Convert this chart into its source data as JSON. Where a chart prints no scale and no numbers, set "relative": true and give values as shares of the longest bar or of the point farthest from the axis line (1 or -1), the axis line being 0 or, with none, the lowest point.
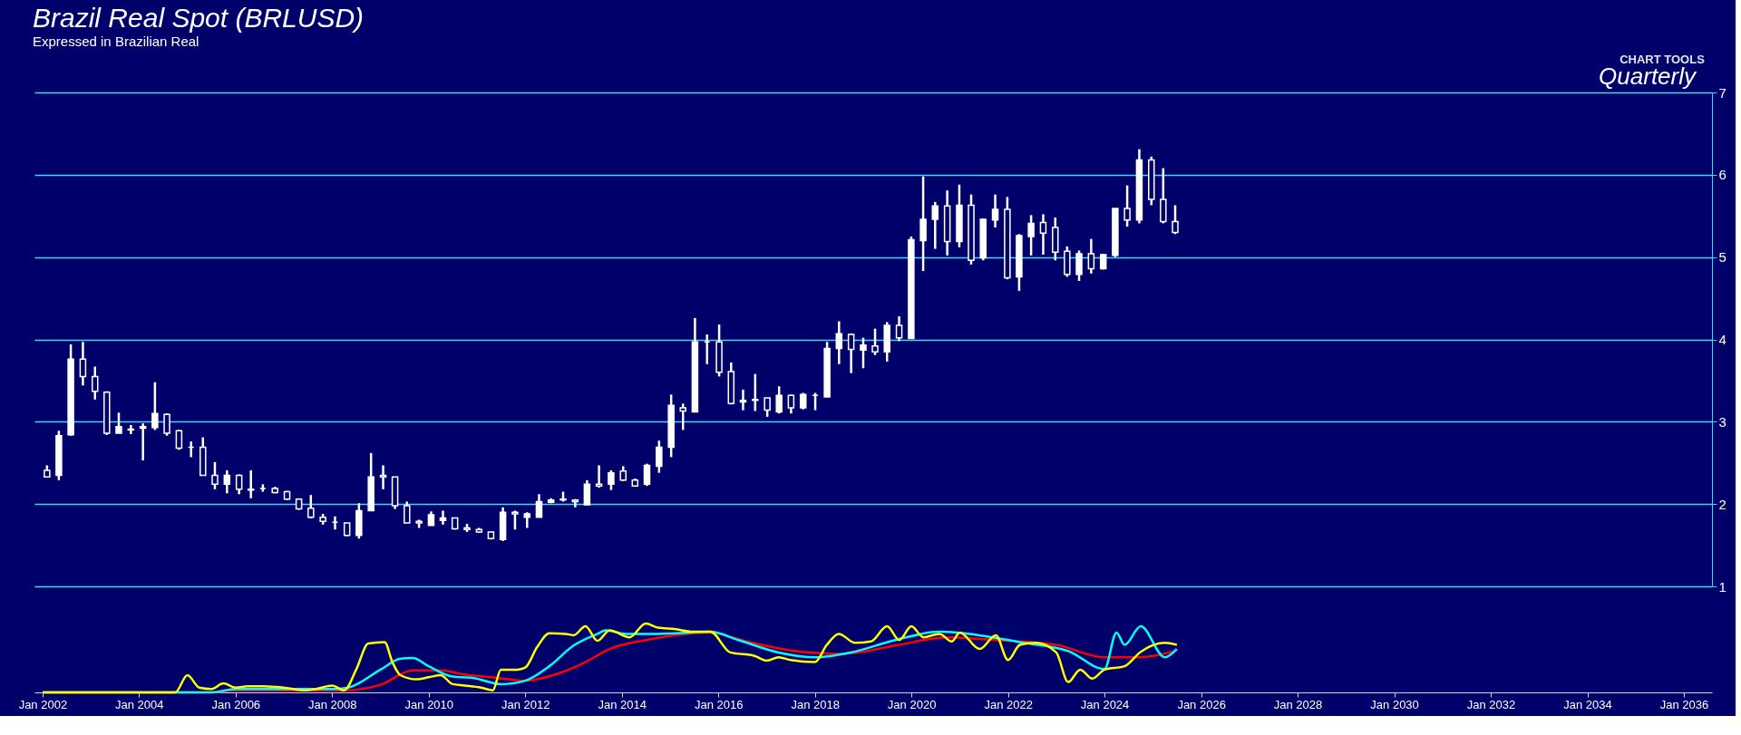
{
  "chart_data": [
    {
      "type": "candlestick",
      "title": "Brazil Real Spot (BRLUSD)",
      "subtitle": "Expressed in Brazilian Real",
      "annotations": [
        "Quarterly",
        "CHART TOOLS"
      ],
      "color": "#ffffff",
      "x": [
        "2002-01",
        "2002-04",
        "2002-07",
        "2002-10",
        "2003-01",
        "2003-04",
        "2003-07",
        "2003-10",
        "2004-01",
        "2004-04",
        "2004-07",
        "2004-10",
        "2005-01",
        "2005-04",
        "2005-07",
        "2005-10",
        "2006-01",
        "2006-04",
        "2006-07",
        "2006-10",
        "2007-01",
        "2007-04",
        "2007-07",
        "2007-10",
        "2008-01",
        "2008-04",
        "2008-07",
        "2008-10",
        "2009-01",
        "2009-04",
        "2009-07",
        "2009-10",
        "2010-01",
        "2010-04",
        "2010-07",
        "2010-10",
        "2011-01",
        "2011-04",
        "2011-07",
        "2011-10",
        "2012-01",
        "2012-04",
        "2012-07",
        "2012-10",
        "2013-01",
        "2013-04",
        "2013-07",
        "2013-10",
        "2014-01",
        "2014-04",
        "2014-07",
        "2014-10",
        "2015-01",
        "2015-04",
        "2015-07",
        "2015-10",
        "2016-01",
        "2016-04",
        "2016-07",
        "2016-10",
        "2017-01",
        "2017-04",
        "2017-07",
        "2017-10",
        "2018-01",
        "2018-04",
        "2018-07",
        "2018-10",
        "2019-01",
        "2019-04",
        "2019-07",
        "2019-10",
        "2020-01",
        "2020-04",
        "2020-07",
        "2020-10",
        "2021-01",
        "2021-04",
        "2021-07",
        "2021-10",
        "2022-01",
        "2022-04",
        "2022-07",
        "2022-10",
        "2023-01",
        "2023-04",
        "2023-07",
        "2023-10",
        "2024-01",
        "2024-04",
        "2024-07",
        "2024-10",
        "2025-01",
        "2025-04",
        "2025-07"
      ],
      "ohlc": [
        [
          2.41,
          2.47,
          2.33,
          2.33
        ],
        [
          2.35,
          2.89,
          2.29,
          2.83
        ],
        [
          2.84,
          3.94,
          2.83,
          3.76
        ],
        [
          3.76,
          3.97,
          3.44,
          3.55
        ],
        [
          3.55,
          3.67,
          3.27,
          3.37
        ],
        [
          3.36,
          3.37,
          2.84,
          2.86
        ],
        [
          2.86,
          3.11,
          2.86,
          2.94
        ],
        [
          2.91,
          2.96,
          2.85,
          2.9
        ],
        [
          2.92,
          2.98,
          2.53,
          2.94
        ],
        [
          2.93,
          3.48,
          2.9,
          3.1
        ],
        [
          3.09,
          3.1,
          2.83,
          2.86
        ],
        [
          2.89,
          2.9,
          2.66,
          2.68
        ],
        [
          2.69,
          2.76,
          2.57,
          2.69
        ],
        [
          2.69,
          2.81,
          2.35,
          2.35
        ],
        [
          2.35,
          2.51,
          2.18,
          2.24
        ],
        [
          2.24,
          2.41,
          2.13,
          2.35
        ],
        [
          2.35,
          2.36,
          2.12,
          2.18
        ],
        [
          2.18,
          2.41,
          2.07,
          2.17
        ],
        [
          2.19,
          2.24,
          2.15,
          2.19
        ],
        [
          2.19,
          2.21,
          2.13,
          2.14
        ],
        [
          2.15,
          2.16,
          2.05,
          2.06
        ],
        [
          2.06,
          2.07,
          1.93,
          1.94
        ],
        [
          1.95,
          2.11,
          1.83,
          1.84
        ],
        [
          1.84,
          1.88,
          1.75,
          1.79
        ],
        [
          1.78,
          1.85,
          1.69,
          1.78
        ],
        [
          1.77,
          1.77,
          1.61,
          1.62
        ],
        [
          1.62,
          2.01,
          1.58,
          1.92
        ],
        [
          1.92,
          2.62,
          1.92,
          2.33
        ],
        [
          2.35,
          2.47,
          2.18,
          2.33
        ],
        [
          2.33,
          2.33,
          1.94,
          1.98
        ],
        [
          1.98,
          2.03,
          1.77,
          1.77
        ],
        [
          1.79,
          1.81,
          1.71,
          1.77
        ],
        [
          1.74,
          1.91,
          1.74,
          1.87
        ],
        [
          1.8,
          1.92,
          1.75,
          1.83
        ],
        [
          1.83,
          1.83,
          1.69,
          1.7
        ],
        [
          1.71,
          1.76,
          1.66,
          1.69
        ],
        [
          1.69,
          1.71,
          1.65,
          1.66
        ],
        [
          1.66,
          1.66,
          1.57,
          1.58
        ],
        [
          1.57,
          1.96,
          1.55,
          1.9
        ],
        [
          1.9,
          1.92,
          1.69,
          1.88
        ],
        [
          1.84,
          1.9,
          1.71,
          1.88
        ],
        [
          1.84,
          2.12,
          1.84,
          2.03
        ],
        [
          2.02,
          2.07,
          2.01,
          2.05
        ],
        [
          2.05,
          2.15,
          2.03,
          2.06
        ],
        [
          2.05,
          2.06,
          1.96,
          2.03
        ],
        [
          1.99,
          2.29,
          1.99,
          2.24
        ],
        [
          2.24,
          2.47,
          2.2,
          2.22
        ],
        [
          2.24,
          2.41,
          2.17,
          2.38
        ],
        [
          2.4,
          2.46,
          2.28,
          2.29
        ],
        [
          2.29,
          2.31,
          2.21,
          2.22
        ],
        [
          2.24,
          2.49,
          2.22,
          2.47
        ],
        [
          2.46,
          2.77,
          2.38,
          2.69
        ],
        [
          2.69,
          3.33,
          2.57,
          3.2
        ],
        [
          3.17,
          3.22,
          2.9,
          3.13
        ],
        [
          3.12,
          4.26,
          3.12,
          3.97
        ],
        [
          3.97,
          4.06,
          3.7,
          3.97
        ],
        [
          3.97,
          4.18,
          3.55,
          3.6
        ],
        [
          3.61,
          3.72,
          3.21,
          3.22
        ],
        [
          3.24,
          3.39,
          3.14,
          3.26
        ],
        [
          3.27,
          3.58,
          3.13,
          3.26
        ],
        [
          3.29,
          3.29,
          3.06,
          3.14
        ],
        [
          3.12,
          3.43,
          3.1,
          3.32
        ],
        [
          3.32,
          3.33,
          3.1,
          3.17
        ],
        [
          3.17,
          3.35,
          3.15,
          3.33
        ],
        [
          3.32,
          3.35,
          3.14,
          3.32
        ],
        [
          3.3,
          3.97,
          3.3,
          3.89
        ],
        [
          3.89,
          4.22,
          3.7,
          4.07
        ],
        [
          4.06,
          4.07,
          3.59,
          3.88
        ],
        [
          3.87,
          4.02,
          3.65,
          3.93
        ],
        [
          3.92,
          4.13,
          3.81,
          3.85
        ],
        [
          3.85,
          4.21,
          3.73,
          4.17
        ],
        [
          4.17,
          4.28,
          3.98,
          4.02
        ],
        [
          4.01,
          5.25,
          4.01,
          5.21
        ],
        [
          5.2,
          5.98,
          4.83,
          5.46
        ],
        [
          5.46,
          5.67,
          5.1,
          5.62
        ],
        [
          5.62,
          5.81,
          5.02,
          5.19
        ],
        [
          5.19,
          5.88,
          5.12,
          5.63
        ],
        [
          5.63,
          5.76,
          4.91,
          4.96
        ],
        [
          4.99,
          5.47,
          4.96,
          5.46
        ],
        [
          5.45,
          5.76,
          5.36,
          5.58
        ],
        [
          5.58,
          5.73,
          4.73,
          4.75
        ],
        [
          4.76,
          5.28,
          4.59,
          5.26
        ],
        [
          5.25,
          5.51,
          5.02,
          5.41
        ],
        [
          5.42,
          5.52,
          5.03,
          5.29
        ],
        [
          5.36,
          5.48,
          4.96,
          5.06
        ],
        [
          5.07,
          5.13,
          4.76,
          4.79
        ],
        [
          4.79,
          5.08,
          4.71,
          5.04
        ],
        [
          5.04,
          5.22,
          4.8,
          4.86
        ],
        [
          4.86,
          5.04,
          4.85,
          5.03
        ],
        [
          5.02,
          5.59,
          5.0,
          5.59
        ],
        [
          5.59,
          5.87,
          5.37,
          5.45
        ],
        [
          5.45,
          6.31,
          5.41,
          6.18
        ],
        [
          6.18,
          6.22,
          5.63,
          5.7
        ],
        [
          5.7,
          6.08,
          5.41,
          5.43
        ],
        [
          5.43,
          5.63,
          5.28,
          5.3
        ]
      ],
      "xlim": [
        "2001-11",
        "2036-08"
      ],
      "ylim": [
        1,
        7
      ],
      "yticks": [
        1,
        2,
        3,
        4,
        5,
        6,
        7
      ],
      "grid": "y",
      "tick_labels": "y"
    },
    {
      "type": "line",
      "relative": true,
      "xlim": [
        "2001-11",
        "2036-08"
      ],
      "tick_labels": "x",
      "xticks": [
        {
          "value": "2002-01",
          "label": "Jan 2002"
        },
        {
          "value": "2004-01",
          "label": "Jan 2004"
        },
        {
          "value": "2006-01",
          "label": "Jan 2006"
        },
        {
          "value": "2008-01",
          "label": "Jan 2008"
        },
        {
          "value": "2010-01",
          "label": "Jan 2010"
        },
        {
          "value": "2012-01",
          "label": "Jan 2012"
        },
        {
          "value": "2014-01",
          "label": "Jan 2014"
        },
        {
          "value": "2016-01",
          "label": "Jan 2016"
        },
        {
          "value": "2018-01",
          "label": "Jan 2018"
        },
        {
          "value": "2020-01",
          "label": "Jan 2020"
        },
        {
          "value": "2022-01",
          "label": "Jan 2022"
        },
        {
          "value": "2024-01",
          "label": "Jan 2024"
        },
        {
          "value": "2026-01",
          "label": "Jan 2026"
        },
        {
          "value": "2028-01",
          "label": "Jan 2028"
        },
        {
          "value": "2030-01",
          "label": "Jan 2030"
        },
        {
          "value": "2032-01",
          "label": "Jan 2032"
        },
        {
          "value": "2034-01",
          "label": "Jan 2034"
        },
        {
          "value": "2036-01",
          "label": "Jan 2036"
        }
      ],
      "series": [
        {
          "color": "#ff0000",
          "x": [
            "2002-01",
            "2005-07",
            "2006-01",
            "2008-04",
            "2009-01",
            "2009-09",
            "2010-04",
            "2010-10",
            "2011-06",
            "2012-01",
            "2012-09",
            "2013-04",
            "2013-10",
            "2014-07",
            "2015-11",
            "2016-08",
            "2017-07",
            "2018-08",
            "2019-09",
            "2020-10",
            "2021-10",
            "2023-01",
            "2024-01",
            "2024-10",
            "2025-07"
          ],
          "values": [
            0,
            0,
            0.03,
            0.03,
            0.11,
            0.32,
            0.32,
            0.26,
            0.21,
            0.17,
            0.27,
            0.44,
            0.63,
            0.76,
            0.87,
            0.74,
            0.61,
            0.56,
            0.68,
            0.8,
            0.76,
            0.69,
            0.51,
            0.51,
            0.61
          ]
        },
        {
          "color": "#00ffff",
          "x": [
            "2002-01",
            "2005-07",
            "2006-01",
            "2008-01",
            "2008-05",
            "2009-01",
            "2009-06",
            "2009-09",
            "2010-01",
            "2010-07",
            "2010-12",
            "2011-07",
            "2012-01",
            "2012-07",
            "2013-01",
            "2013-07",
            "2013-09",
            "2014-02",
            "2014-10",
            "2015-11",
            "2016-06",
            "2017-04",
            "2018-01",
            "2018-10",
            "2019-09",
            "2020-08",
            "2021-07",
            "2022-05",
            "2023-04",
            "2024-01",
            "2024-04",
            "2024-06",
            "2024-10",
            "2025-04",
            "2025-07"
          ],
          "values": [
            0,
            0,
            0.05,
            0.05,
            0.07,
            0.33,
            0.49,
            0.5,
            0.38,
            0.23,
            0.21,
            0.12,
            0.17,
            0.38,
            0.68,
            0.85,
            0.9,
            0.85,
            0.85,
            0.88,
            0.76,
            0.58,
            0.51,
            0.58,
            0.76,
            0.88,
            0.82,
            0.72,
            0.6,
            0.34,
            0.87,
            0.69,
            0.96,
            0.51,
            0.63
          ]
        },
        {
          "color": "#ffff00",
          "x": [
            "2002-01",
            "2004-10",
            "2005-01",
            "2005-04",
            "2005-07",
            "2005-10",
            "2006-01",
            "2006-04",
            "2006-08",
            "2007-01",
            "2007-06",
            "2007-09",
            "2008-01",
            "2008-04",
            "2008-07",
            "2008-10",
            "2009-02",
            "2009-04",
            "2009-06",
            "2009-10",
            "2010-01",
            "2010-04",
            "2010-07",
            "2010-10",
            "2011-02",
            "2011-05",
            "2011-07",
            "2011-11",
            "2012-01",
            "2012-04",
            "2012-07",
            "2012-11",
            "2013-01",
            "2013-04",
            "2013-07",
            "2013-10",
            "2014-03",
            "2014-07",
            "2014-10",
            "2015-02",
            "2015-07",
            "2015-11",
            "2016-04",
            "2016-10",
            "2017-01",
            "2017-04",
            "2017-07",
            "2018-01",
            "2018-04",
            "2018-07",
            "2018-11",
            "2019-03",
            "2019-07",
            "2019-10",
            "2020-01",
            "2020-04",
            "2020-08",
            "2020-11",
            "2021-01",
            "2021-06",
            "2021-10",
            "2022-01",
            "2022-04",
            "2022-08",
            "2023-01",
            "2023-04",
            "2023-07",
            "2023-10",
            "2024-01",
            "2024-06",
            "2024-10",
            "2025-04",
            "2025-07"
          ],
          "values": [
            0,
            0,
            0.25,
            0.07,
            0.05,
            0.13,
            0.07,
            0.09,
            0.09,
            0.07,
            0.03,
            0.05,
            0.1,
            0.03,
            0.33,
            0.71,
            0.73,
            0.44,
            0.25,
            0.19,
            0.22,
            0.25,
            0.12,
            0.1,
            0.07,
            0.03,
            0.33,
            0.33,
            0.36,
            0.66,
            0.86,
            0.85,
            0.83,
            0.96,
            0.75,
            0.9,
            0.8,
            1.0,
            0.94,
            0.92,
            0.88,
            0.88,
            0.58,
            0.53,
            0.46,
            0.51,
            0.47,
            0.44,
            0.69,
            0.85,
            0.72,
            0.74,
            0.96,
            0.76,
            0.96,
            0.8,
            0.85,
            0.74,
            0.87,
            0.63,
            0.83,
            0.47,
            0.69,
            0.72,
            0.58,
            0.15,
            0.33,
            0.2,
            0.33,
            0.38,
            0.59,
            0.72,
            0.69
          ]
        }
      ]
    }
  ]
}
